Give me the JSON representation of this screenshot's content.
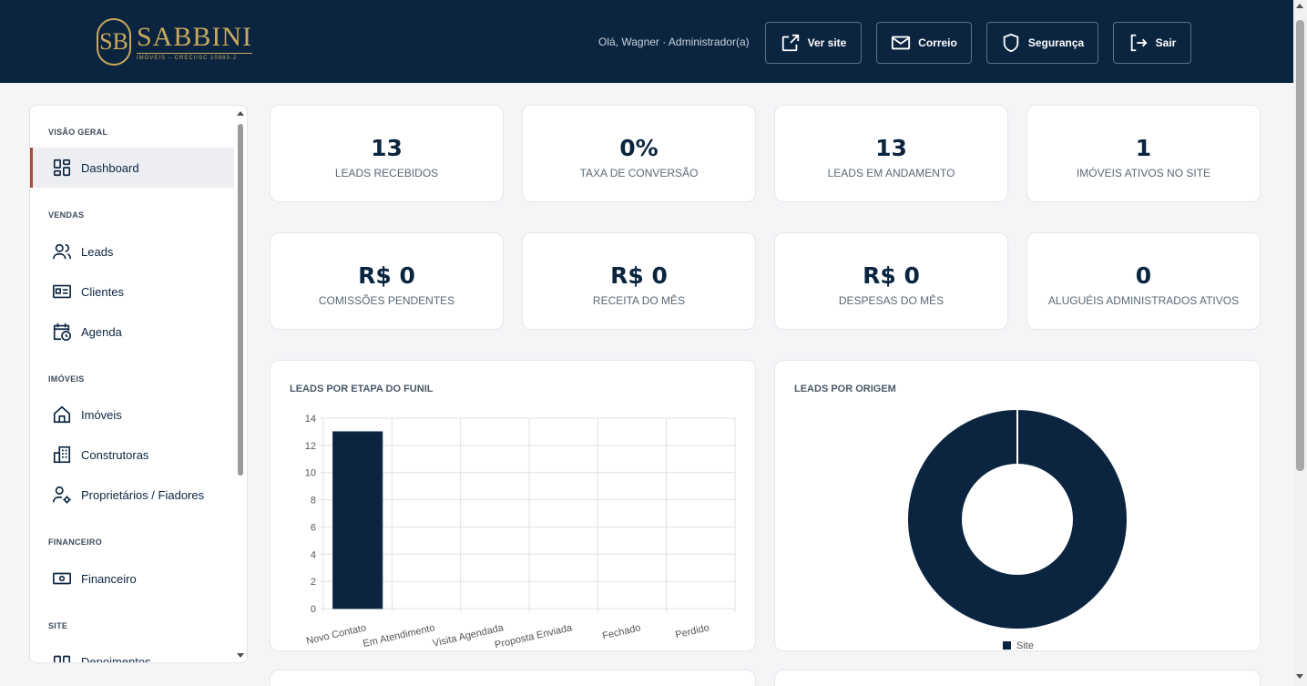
{
  "header": {
    "brand_name": "SABBINI",
    "brand_monogram": "SB",
    "brand_sub": "IMÓVEIS – CRECI/SC 10983-J",
    "greeting": "Olá, Wagner · Administrador(a)",
    "buttons": [
      {
        "label": "Ver site",
        "icon": "external-link-icon"
      },
      {
        "label": "Correio",
        "icon": "mail-icon"
      },
      {
        "label": "Segurança",
        "icon": "shield-icon"
      },
      {
        "label": "Sair",
        "icon": "logout-icon"
      }
    ]
  },
  "sidebar": {
    "sections": [
      {
        "title": "VISÃO GERAL",
        "items": [
          {
            "label": "Dashboard",
            "icon": "dashboard-icon",
            "active": true
          }
        ]
      },
      {
        "title": "VENDAS",
        "items": [
          {
            "label": "Leads",
            "icon": "users-icon"
          },
          {
            "label": "Clientes",
            "icon": "id-card-icon"
          },
          {
            "label": "Agenda",
            "icon": "calendar-clock-icon"
          }
        ]
      },
      {
        "title": "IMÓVEIS",
        "items": [
          {
            "label": "Imóveis",
            "icon": "home-icon"
          },
          {
            "label": "Construtoras",
            "icon": "building-icon"
          },
          {
            "label": "Proprietários / Fiadores",
            "icon": "user-gear-icon"
          }
        ]
      },
      {
        "title": "FINANCEIRO",
        "items": [
          {
            "label": "Financeiro",
            "icon": "money-icon"
          }
        ]
      },
      {
        "title": "SITE",
        "items": [
          {
            "label": "Depoimentos",
            "icon": "quote-icon"
          }
        ]
      }
    ]
  },
  "stats": [
    {
      "value": "13",
      "label": "LEADS RECEBIDOS"
    },
    {
      "value": "0%",
      "label": "TAXA DE CONVERSÃO"
    },
    {
      "value": "13",
      "label": "LEADS EM ANDAMENTO"
    },
    {
      "value": "1",
      "label": "IMÓVEIS ATIVOS NO SITE"
    },
    {
      "value": "R$ 0",
      "label": "COMISSÕES PENDENTES"
    },
    {
      "value": "R$ 0",
      "label": "RECEITA DO MÊS"
    },
    {
      "value": "R$ 0",
      "label": "DESPESAS DO MÊS"
    },
    {
      "value": "0",
      "label": "ALUGUÉIS ADMINISTRADOS ATIVOS"
    }
  ],
  "colors": {
    "primary": "#0b2540",
    "accent": "#c9a85c",
    "active_border": "#b04a3a"
  },
  "chart_data": [
    {
      "type": "bar",
      "title": "LEADS POR ETAPA DO FUNIL",
      "categories": [
        "Novo Contato",
        "Em Atendimento",
        "Visita Agendada",
        "Proposta Enviada",
        "Fechado",
        "Perdido"
      ],
      "values": [
        13,
        0,
        0,
        0,
        0,
        0
      ],
      "ylim": [
        0,
        14
      ],
      "yticks": [
        0,
        2,
        4,
        6,
        8,
        10,
        12,
        14
      ],
      "grid": true
    },
    {
      "type": "pie",
      "title": "LEADS POR ORIGEM",
      "labels": [
        "Site"
      ],
      "values": [
        13
      ],
      "donut": true,
      "legend": "bottom"
    }
  ]
}
